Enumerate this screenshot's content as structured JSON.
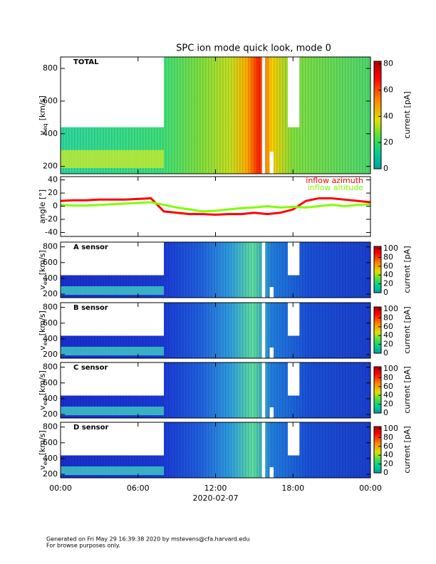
{
  "title": "SPC ion mode quick look, mode 0",
  "shared_x": {
    "xlim": [
      0,
      24
    ],
    "xticks": [
      {
        "value": 0,
        "label": "00:00"
      },
      {
        "value": 6,
        "label": "06:00"
      },
      {
        "value": 12,
        "label": "12:00"
      },
      {
        "value": 18,
        "label": "18:00"
      },
      {
        "value": 24,
        "label": "00:00"
      }
    ],
    "xlabel": "2020-02-07"
  },
  "chart_data": [
    {
      "type": "heatmap",
      "label": "TOTAL",
      "ylabel": {
        "main": "v",
        "sub": "eq",
        "unit": "[km/s]"
      },
      "ylim": [
        155,
        870
      ],
      "yticks": [
        200,
        400,
        600,
        800
      ],
      "clim": [
        0,
        82
      ],
      "cticks": [
        0,
        20,
        40,
        60,
        80
      ],
      "clabel": "current [pA]"
    },
    {
      "type": "line",
      "ylabel": "angle [°]",
      "ylim": [
        -46,
        45
      ],
      "yticks": [
        -40,
        -20,
        0,
        20,
        40
      ],
      "x": [
        0,
        1,
        2,
        3,
        4,
        5,
        6,
        7,
        8,
        9,
        10,
        11,
        12,
        13,
        14,
        15,
        16,
        17,
        18,
        19,
        20,
        21,
        22,
        23,
        24
      ],
      "series": [
        {
          "name": "inflow azimuth",
          "color": "#ff0000",
          "values": [
            8,
            9,
            9,
            10,
            10,
            10,
            11,
            12,
            -8,
            -10,
            -12,
            -12,
            -13,
            -12,
            -12,
            -10,
            -12,
            -10,
            -5,
            8,
            12,
            12,
            10,
            8,
            6
          ]
        },
        {
          "name": "inflow altitude",
          "color": "#7fff00",
          "values": [
            2,
            1,
            1,
            2,
            3,
            4,
            5,
            6,
            2,
            -2,
            -5,
            -8,
            -7,
            -5,
            -3,
            -2,
            0,
            -2,
            -1,
            -2,
            0,
            2,
            0,
            2,
            3
          ]
        }
      ]
    },
    {
      "type": "heatmap",
      "label": "A sensor",
      "ylabel": {
        "main": "v",
        "sub": "eq",
        "unit": "[km/s]"
      },
      "ylim": [
        155,
        860
      ],
      "yticks": [
        200,
        400,
        600,
        800
      ],
      "clim": [
        0,
        105
      ],
      "cticks": [
        0,
        20,
        40,
        60,
        80,
        100
      ],
      "clabel": "current [pA]"
    },
    {
      "type": "heatmap",
      "label": "B sensor",
      "ylabel": {
        "main": "v",
        "sub": "eq",
        "unit": "[km/s]"
      },
      "ylim": [
        155,
        860
      ],
      "yticks": [
        200,
        400,
        600,
        800
      ],
      "clim": [
        0,
        105
      ],
      "cticks": [
        0,
        20,
        40,
        60,
        80,
        100
      ],
      "clabel": "current [pA]"
    },
    {
      "type": "heatmap",
      "label": "C sensor",
      "ylabel": {
        "main": "v",
        "sub": "eq",
        "unit": "[km/s]"
      },
      "ylim": [
        155,
        860
      ],
      "yticks": [
        200,
        400,
        600,
        800
      ],
      "clim": [
        0,
        105
      ],
      "cticks": [
        0,
        20,
        40,
        60,
        80,
        100
      ],
      "clabel": "current [pA]"
    },
    {
      "type": "heatmap",
      "label": "D sensor",
      "ylabel": {
        "main": "v",
        "sub": "eq",
        "unit": "[km/s]"
      },
      "ylim": [
        155,
        860
      ],
      "yticks": [
        200,
        400,
        600,
        800
      ],
      "clim": [
        0,
        105
      ],
      "cticks": [
        0,
        20,
        40,
        60,
        80,
        100
      ],
      "clabel": "current [pA]"
    }
  ],
  "footer": [
    "Generated on Fri May 29 16:39:38 2020 by mstevens@cfa.harvard.edu",
    "For browse purposes only."
  ]
}
